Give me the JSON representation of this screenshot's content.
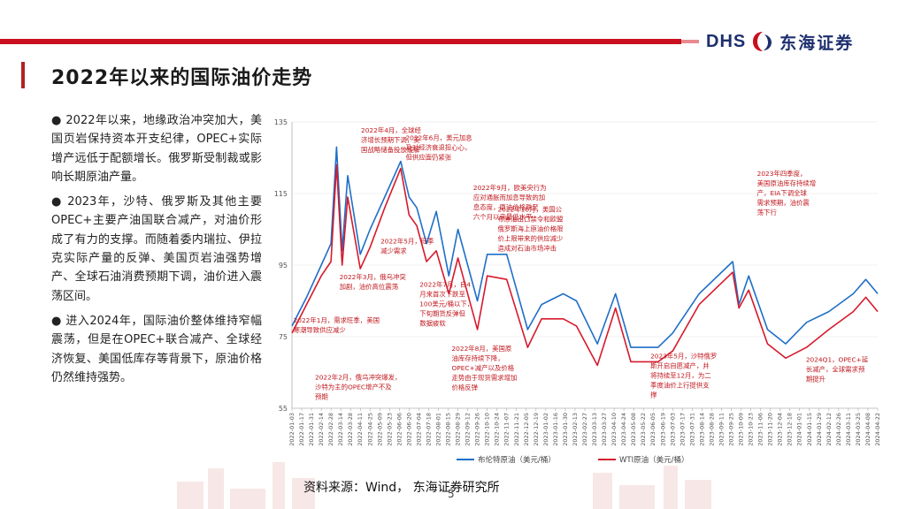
{
  "header": {
    "logo_text": "DHS",
    "company": "东海证券"
  },
  "page_title": "2022年以来的国际油价走势",
  "bullets": [
    "●  2022年以来，地缘政治冲突加大，美国页岩保持资本开支纪律，OPEC+实际增产远低于配额增长。俄罗斯受制裁或影响长期原油产量。",
    "●  2023年，沙特、俄罗斯及其他主要OPEC+主要产油国联合减产，对油价形成了有力的支撑。而随着委内瑞拉、伊拉克实际产量的反弹、美国页岩油强势增产、全球石油消费预期下调，油价进入震荡区间。",
    "●  进入2024年，国际油价整体维持窄幅震荡，但是在OPEC+联合减产、全球经济恢复、美国低库存等背景下，原油价格仍然维持强势。"
  ],
  "source": "资料来源：Wind， 东海证券研究所",
  "page_number": "5",
  "colors": {
    "brent": "#1f6fc7",
    "wti": "#d61a2c",
    "annotation": "#c0181e",
    "brand": "#1d2f6e",
    "accent": "#c8101e"
  },
  "chart_data": {
    "type": "line",
    "ylim": [
      55,
      135
    ],
    "yticks": [
      "55",
      "75",
      "95",
      "115",
      "135"
    ],
    "xlim": [
      "2022-01-03",
      "2024-04-22"
    ],
    "xticks": [
      "2022-01-03",
      "2022-01-17",
      "2022-01-31",
      "2022-02-14",
      "2022-02-28",
      "2022-03-14",
      "2022-03-28",
      "2022-04-11",
      "2022-04-25",
      "2022-05-09",
      "2022-05-23",
      "2022-06-06",
      "2022-06-20",
      "2022-07-04",
      "2022-07-18",
      "2022-08-01",
      "2022-08-15",
      "2022-08-29",
      "2022-09-12",
      "2022-09-26",
      "2022-10-10",
      "2022-10-24",
      "2022-11-07",
      "2022-11-21",
      "2022-12-05",
      "2022-12-19",
      "2023-01-02",
      "2023-01-16",
      "2023-01-30",
      "2023-02-13",
      "2023-02-27",
      "2023-03-13",
      "2023-03-27",
      "2023-04-10",
      "2023-04-24",
      "2023-05-08",
      "2023-05-22",
      "2023-06-05",
      "2023-06-19",
      "2023-07-03",
      "2023-07-17",
      "2023-07-31",
      "2023-08-14",
      "2023-08-28",
      "2023-09-11",
      "2023-09-25",
      "2023-10-09",
      "2023-10-23",
      "2023-11-06",
      "2023-11-20",
      "2023-12-04",
      "2023-12-18",
      "2024-01-01",
      "2024-01-15",
      "2024-01-29",
      "2024-02-12",
      "2024-02-26",
      "2024-03-11",
      "2024-03-25",
      "2024-04-08",
      "2024-04-22"
    ],
    "legend": [
      "布伦特原油（美元/桶）",
      "WTI原油（美元/桶）"
    ],
    "legend_position": "bottom",
    "series": [
      {
        "name": "布伦特原油（美元/桶）",
        "color": "#1f6fc7",
        "points": [
          [
            "2022-01-03",
            78
          ],
          [
            "2022-01-24",
            86
          ],
          [
            "2022-02-14",
            95
          ],
          [
            "2022-02-28",
            101
          ],
          [
            "2022-03-08",
            128
          ],
          [
            "2022-03-16",
            99
          ],
          [
            "2022-03-24",
            120
          ],
          [
            "2022-04-11",
            98
          ],
          [
            "2022-04-25",
            105
          ],
          [
            "2022-05-16",
            114
          ],
          [
            "2022-06-08",
            124
          ],
          [
            "2022-06-20",
            114
          ],
          [
            "2022-07-01",
            111
          ],
          [
            "2022-07-15",
            101
          ],
          [
            "2022-07-29",
            110
          ],
          [
            "2022-08-16",
            92
          ],
          [
            "2022-08-29",
            105
          ],
          [
            "2022-09-26",
            85
          ],
          [
            "2022-10-10",
            98
          ],
          [
            "2022-11-07",
            98
          ],
          [
            "2022-12-07",
            77
          ],
          [
            "2022-12-27",
            84
          ],
          [
            "2023-01-27",
            87
          ],
          [
            "2023-02-15",
            85
          ],
          [
            "2023-03-17",
            73
          ],
          [
            "2023-04-12",
            87
          ],
          [
            "2023-05-04",
            72
          ],
          [
            "2023-06-12",
            72
          ],
          [
            "2023-07-03",
            76
          ],
          [
            "2023-08-10",
            87
          ],
          [
            "2023-09-27",
            96
          ],
          [
            "2023-10-06",
            84
          ],
          [
            "2023-10-20",
            92
          ],
          [
            "2023-11-16",
            77
          ],
          [
            "2023-12-12",
            73
          ],
          [
            "2024-01-11",
            79
          ],
          [
            "2024-02-12",
            82
          ],
          [
            "2024-03-18",
            87
          ],
          [
            "2024-04-05",
            91
          ],
          [
            "2024-04-22",
            87
          ]
        ]
      },
      {
        "name": "WTI原油（美元/桶）",
        "color": "#d61a2c",
        "points": [
          [
            "2022-01-03",
            76
          ],
          [
            "2022-01-24",
            84
          ],
          [
            "2022-02-14",
            92
          ],
          [
            "2022-02-28",
            96
          ],
          [
            "2022-03-08",
            123
          ],
          [
            "2022-03-16",
            95
          ],
          [
            "2022-03-24",
            114
          ],
          [
            "2022-04-11",
            94
          ],
          [
            "2022-04-25",
            100
          ],
          [
            "2022-05-16",
            111
          ],
          [
            "2022-06-08",
            122
          ],
          [
            "2022-06-20",
            109
          ],
          [
            "2022-07-01",
            106
          ],
          [
            "2022-07-15",
            96
          ],
          [
            "2022-07-29",
            99
          ],
          [
            "2022-08-16",
            87
          ],
          [
            "2022-08-29",
            97
          ],
          [
            "2022-09-26",
            77
          ],
          [
            "2022-10-10",
            92
          ],
          [
            "2022-11-07",
            91
          ],
          [
            "2022-12-07",
            72
          ],
          [
            "2022-12-27",
            80
          ],
          [
            "2023-01-27",
            80
          ],
          [
            "2023-02-15",
            78
          ],
          [
            "2023-03-17",
            67
          ],
          [
            "2023-04-12",
            83
          ],
          [
            "2023-05-04",
            68
          ],
          [
            "2023-06-12",
            68
          ],
          [
            "2023-07-03",
            71
          ],
          [
            "2023-08-10",
            84
          ],
          [
            "2023-09-27",
            93
          ],
          [
            "2023-10-06",
            83
          ],
          [
            "2023-10-20",
            88
          ],
          [
            "2023-11-16",
            73
          ],
          [
            "2023-12-12",
            69
          ],
          [
            "2024-01-11",
            72
          ],
          [
            "2024-02-12",
            77
          ],
          [
            "2024-03-18",
            82
          ],
          [
            "2024-04-05",
            86
          ],
          [
            "2024-04-22",
            82
          ]
        ]
      }
    ],
    "annotations": [
      {
        "text": "2022年1月，需求旺季，美国寒潮导致供应减少",
        "date": "2022-01-05",
        "value": 79,
        "lines": [
          "2022年1月，需求旺季，美国",
          "寒潮导致供应减少"
        ]
      },
      {
        "text": "2022年2月，俄乌冲突爆发，沙特为主的OPEC增产不及预期",
        "date": "2022-02-05",
        "value": 63,
        "lines": [
          "2022年2月，俄乌冲突爆发，",
          "沙特为主的OPEC增产不及",
          "预期"
        ]
      },
      {
        "text": "2022年3月，俄乌冲突加剧，油价高位震荡",
        "date": "2022-03-12",
        "value": 91,
        "lines": [
          "2022年3月，俄乌冲突",
          "加剧，油价高位震荡"
        ]
      },
      {
        "text": "2022年4月，全球经济增长预期下调，美国战略储备投放缓解供需",
        "date": "2022-04-12",
        "value": 132,
        "lines": [
          "2022年4月，全球经",
          "济增长预期下调，美",
          "国战略储备投放缓解"
        ]
      },
      {
        "text": "2022年5月，旺季减少需求",
        "date": "2022-05-10",
        "value": 101,
        "lines": [
          "2022年5月，旺季",
          "减少需求"
        ]
      },
      {
        "text": "2022年6月，美元加息及对经济衰退担忧，但供应面仍紧张",
        "date": "2022-06-15",
        "value": 130,
        "lines": [
          "2022年6月，美元加息",
          "及对经济衰退担心心，",
          "但供应面仍紧张"
        ]
      },
      {
        "text": "2022年7月，自4月来首次下跌至100美元/桶以下，下旬期货反弹但数据疲软",
        "date": "2022-07-05",
        "value": 89,
        "lines": [
          "2022年7月，自4",
          "月来首次下跌至",
          "100美元/桶以下，",
          "下旬期货反弹但",
          "数据疲软"
        ]
      },
      {
        "text": "2022年8月，美国原油库存持续下降，OPEC+减产预期，价格反弹",
        "date": "2022-08-20",
        "value": 71,
        "lines": [
          "2022年8月，美国原",
          "油库存持续下降，",
          "OPEC+减产以及价格",
          "走势由于现货需求增加",
          "价格反弹"
        ]
      },
      {
        "text": "2022年9月，欧美央行为应对通胀加息，原油价格跌至近六个月以来最低水平",
        "date": "2022-09-20",
        "value": 116,
        "lines": [
          "2022年9月，欧美央行为",
          "应对通胀而加息导致的加",
          "息态度，原油价格跌至",
          "六个月以来最低水平"
        ]
      },
      {
        "text": "2022年10月，美国公布原油出口禁令，俄罗斯石油价格上限带来的减少供应",
        "date": "2022-10-25",
        "value": 110,
        "lines": [
          "2022年10月，美国公",
          "布原油出口禁令和欧盟",
          "俄罗斯海上原油价格限",
          "价上限带来的供应减少",
          "造成对石油市场冲击"
        ]
      },
      {
        "text": "2023年5月，沙特俄罗斯开启自愿减产，并将持续至12月，为二季度油价上行提供支撑",
        "date": "2023-06-01",
        "value": 69,
        "lines": [
          "2023年5月，沙特俄罗",
          "斯开启自愿减产，并",
          "将持续至12月，为二",
          "季度油价上行提供支",
          "撑"
        ]
      },
      {
        "text": "2023年四季度，美国原油库存持续增产，EIA下调全球需求预期，油价震荡下行",
        "date": "2023-11-01",
        "value": 120,
        "lines": [
          "2023年四季度，",
          "美国原油库存持续增",
          "产，EIA下调全球",
          "需求预期，油价震",
          "荡下行"
        ]
      },
      {
        "text": "2024Q1，OPEC+延长减产，全球需求预期提升",
        "date": "2024-01-10",
        "value": 68,
        "lines": [
          "2024Q1，OPEC+延",
          "长减产，全球需求预",
          "期提升"
        ]
      }
    ]
  }
}
